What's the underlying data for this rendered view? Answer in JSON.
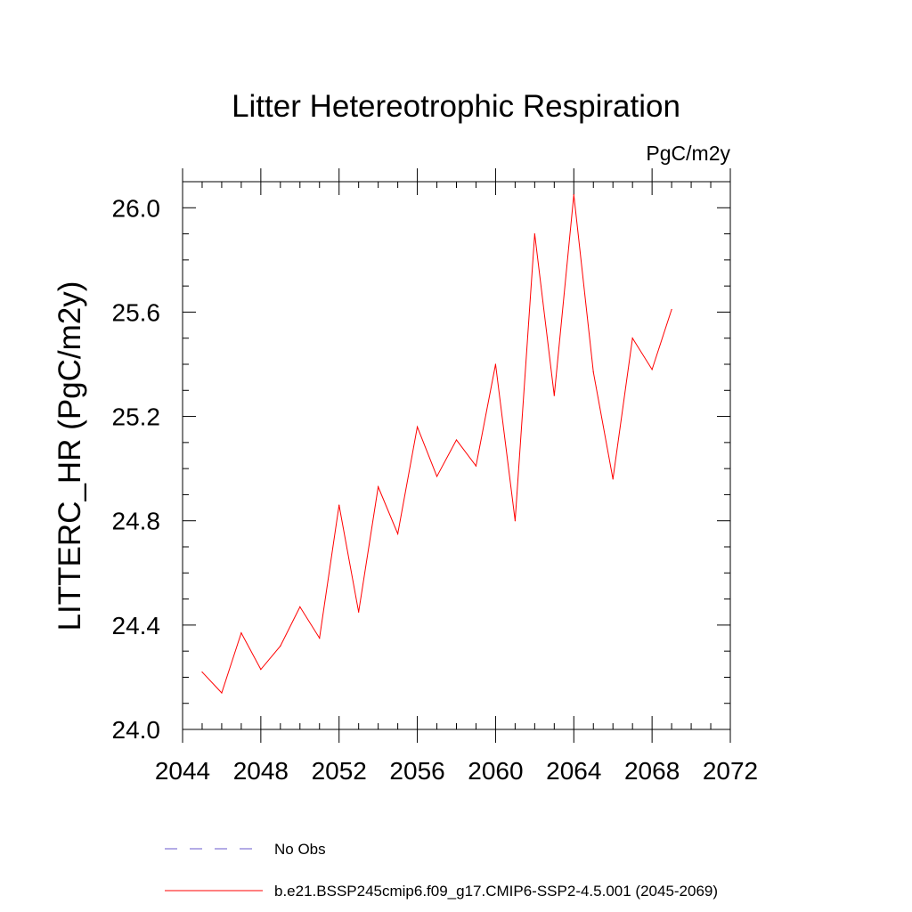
{
  "chart_data": {
    "type": "line",
    "title": "Litter Hetereotrophic Respiration",
    "units_label": "PgC/m2y",
    "ylabel": "LITTERC_HR  (PgC/m2y)",
    "xlabel": "",
    "xlim": [
      2044,
      2072
    ],
    "ylim": [
      24.0,
      26.1
    ],
    "x_ticks": [
      2044,
      2048,
      2052,
      2056,
      2060,
      2064,
      2068,
      2072
    ],
    "x_tick_labels": [
      "2044",
      "2048",
      "2052",
      "2056",
      "2060",
      "2064",
      "2068",
      "2072"
    ],
    "x_minor_step": 1,
    "y_ticks": [
      24.0,
      24.4,
      24.8,
      25.2,
      25.6,
      26.0
    ],
    "y_tick_labels": [
      "24.0",
      "24.4",
      "24.8",
      "25.2",
      "25.6",
      "26.0"
    ],
    "y_minor_step": 0.1,
    "grid": false,
    "series": [
      {
        "name": "b.e21.BSSP245cmip6.f09_g17.CMIP6-SSP2-4.5.001 (2045-2069)",
        "color": "#ff0000",
        "x": [
          2045,
          2046,
          2047,
          2048,
          2049,
          2050,
          2051,
          2052,
          2053,
          2054,
          2055,
          2056,
          2057,
          2058,
          2059,
          2060,
          2061,
          2062,
          2063,
          2064,
          2065,
          2066,
          2067,
          2068,
          2069
        ],
        "values": [
          24.22,
          24.14,
          24.37,
          24.23,
          24.32,
          24.47,
          24.35,
          24.86,
          24.45,
          24.93,
          24.75,
          25.16,
          24.97,
          25.11,
          25.01,
          25.4,
          24.8,
          25.9,
          25.28,
          26.05,
          25.37,
          24.96,
          25.5,
          25.38,
          25.61
        ]
      }
    ],
    "legend": [
      {
        "label": "No Obs",
        "style": "dashed",
        "color": "#6a5acd"
      },
      {
        "label": "b.e21.BSSP245cmip6.f09_g17.CMIP6-SSP2-4.5.001 (2045-2069)",
        "style": "solid",
        "color": "#ff0000"
      }
    ],
    "legend_position": "bottom"
  }
}
